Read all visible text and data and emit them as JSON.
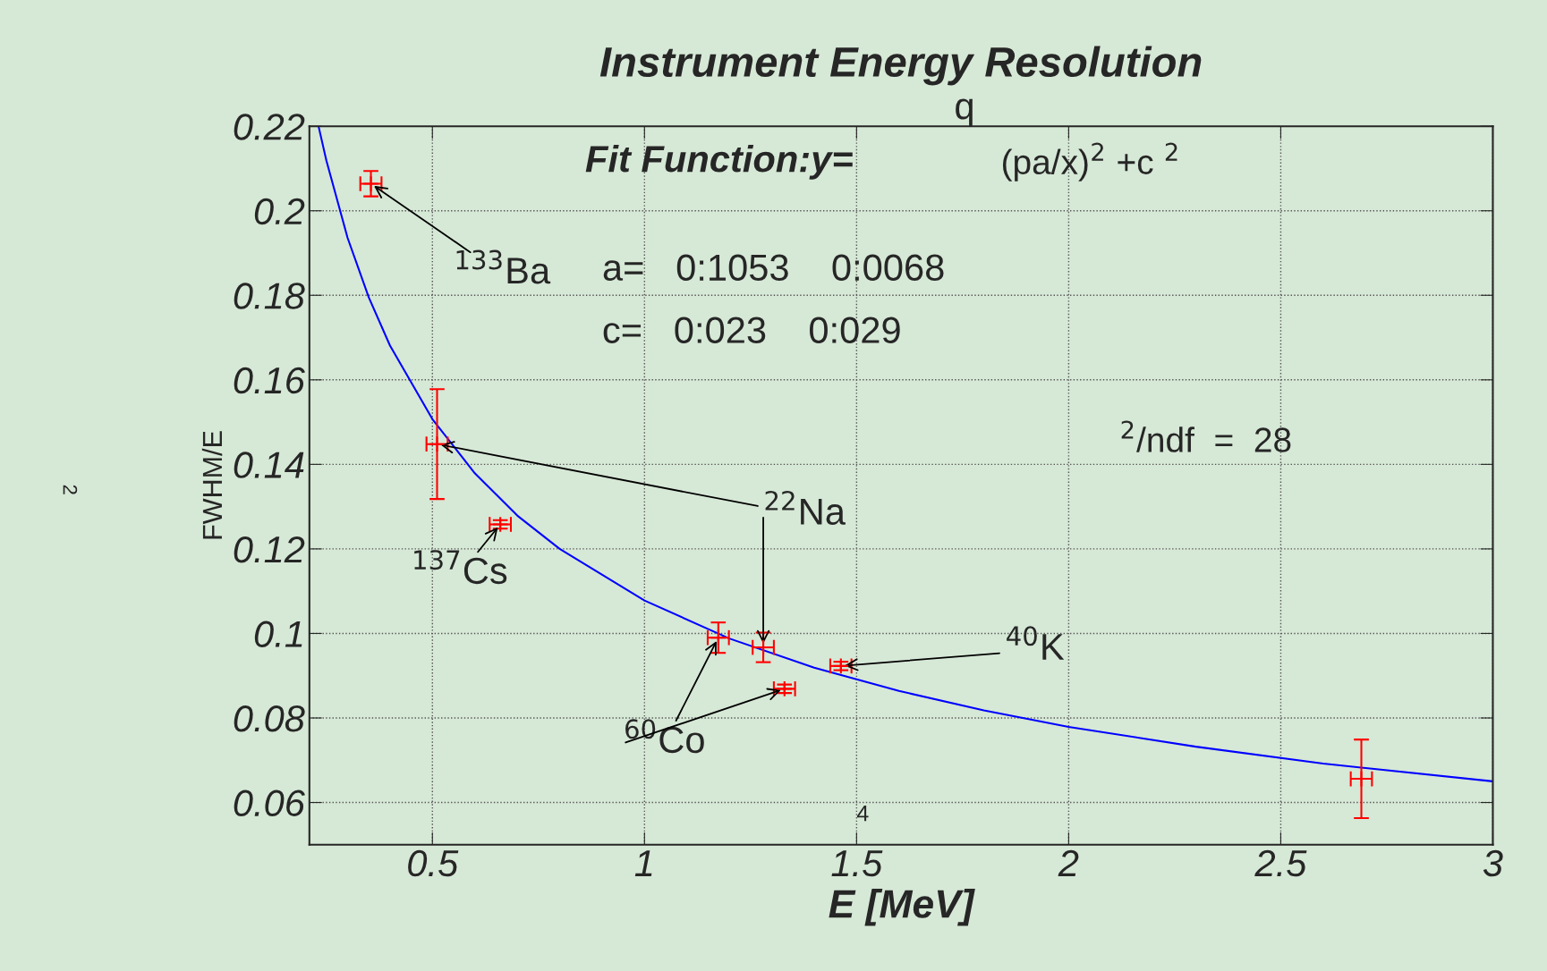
{
  "chart_data": {
    "type": "scatter",
    "title": "Instrument Energy Resolution",
    "xlabel": "E [MeV]",
    "ylabel": "FWHM/E",
    "xlim": [
      0.21,
      3
    ],
    "ylim": [
      0.05,
      0.22
    ],
    "xticks": [
      0.5,
      1,
      1.5,
      2,
      2.5,
      3
    ],
    "yticks": [
      0.06,
      0.08,
      {
        "value": 0.1,
        "label": "0.1"
      },
      0.12,
      0.14,
      0.16,
      0.18,
      {
        "value": 0.2,
        "label": "0.2"
      },
      0.22
    ],
    "grid": true,
    "legend": false,
    "series": [
      {
        "color": "#ff0000",
        "marker": "cross",
        "x": [
          0.355,
          0.511,
          0.66,
          1.174,
          1.28,
          1.33,
          1.463,
          2.69
        ],
        "values": [
          0.2064,
          0.1448,
          0.1258,
          0.099,
          0.0967,
          0.0869,
          0.0923,
          0.0656
        ],
        "errors": [
          0.003,
          0.013,
          0.001,
          0.0036,
          0.0035,
          0.001,
          0.001,
          0.0093
        ],
        "xerrors": [
          0.025,
          0.025,
          0.025,
          0.025,
          0.025,
          0.025,
          0.025,
          0.025
        ]
      },
      {
        "type": "line",
        "color": "#0000ff",
        "line_style": "solid",
        "marker": "none",
        "x": [
          0.232,
          0.25,
          0.3,
          0.35,
          0.4,
          0.5,
          0.6,
          0.7,
          0.8,
          1.0,
          1.2,
          1.4,
          1.6,
          1.8,
          2.0,
          2.3,
          2.6,
          3.0
        ],
        "values": [
          0.2198,
          0.2119,
          0.1936,
          0.1795,
          0.1681,
          0.1507,
          0.1379,
          0.1279,
          0.12,
          0.1078,
          0.0988,
          0.0919,
          0.0864,
          0.0818,
          0.0779,
          0.0732,
          0.0692,
          0.065
        ]
      }
    ],
    "annotations": [
      {
        "text": "$^{133}$Ba",
        "x": 0.355,
        "y": 0.2064
      },
      {
        "text": "$^{22}$Na",
        "x": 0.511,
        "y": 0.1448
      },
      {
        "text": "$^{137}$Cs",
        "x": 0.66,
        "y": 0.1258
      },
      {
        "text": "$^{60}$Co",
        "x": 1.174,
        "y": 0.099
      },
      {
        "text": "$^{40}$K",
        "x": 1.463,
        "y": 0.0923
      },
      "Fit Function:y=",
      "q",
      "(pa/x)$^{2}$ +c $^{2}$",
      "a=   0:1053    0:0068",
      "c=   0:023    0:029",
      "$^{2}$/ndf  =  28",
      "4",
      "2"
    ]
  }
}
